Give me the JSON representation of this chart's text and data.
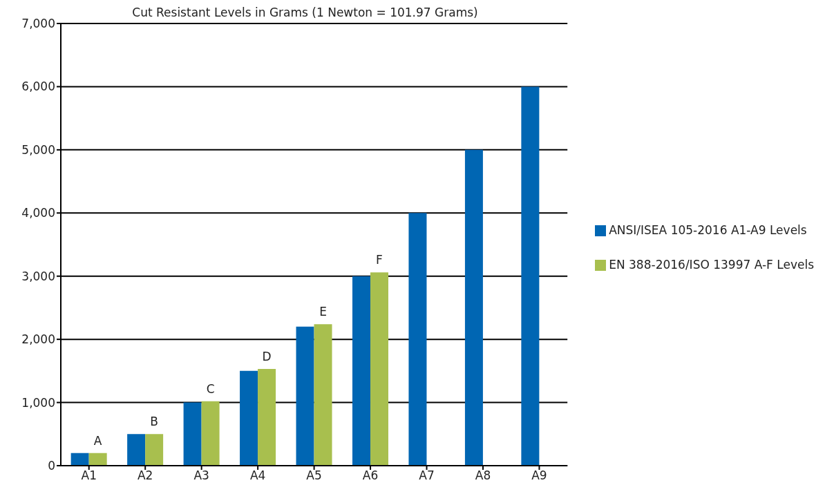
{
  "chart_data": {
    "type": "bar",
    "title": "Cut Resistant Levels in Grams (1 Newton = 101.97 Grams)",
    "categories": [
      "A1",
      "A2",
      "A3",
      "A4",
      "A5",
      "A6",
      "A7",
      "A8",
      "A9"
    ],
    "series": [
      {
        "name": "ANSI/ISEA 105-2016 A1-A9 Levels",
        "color": "#0066b3",
        "values": [
          200,
          500,
          1000,
          1500,
          2200,
          3000,
          4000,
          5000,
          6000
        ]
      },
      {
        "name": "EN 388-2016/ISO 13997 A-F Levels",
        "color": "#a8bf4e",
        "values": [
          200,
          500,
          1020,
          1530,
          2240,
          3060,
          null,
          null,
          null
        ],
        "value_labels": [
          "A",
          "B",
          "C",
          "D",
          "E",
          "F",
          null,
          null,
          null
        ]
      }
    ],
    "ylim": [
      0,
      7000
    ],
    "yticks": [
      {
        "value": 0,
        "label": "0"
      },
      {
        "value": 1000,
        "label": "1,000"
      },
      {
        "value": 2000,
        "label": "2,000"
      },
      {
        "value": 3000,
        "label": "3,000"
      },
      {
        "value": 4000,
        "label": "4,000"
      },
      {
        "value": 5000,
        "label": "5,000"
      },
      {
        "value": 6000,
        "label": "6,000"
      },
      {
        "value": 7000,
        "label": "7,000"
      }
    ],
    "grid": "y",
    "legend": "right"
  }
}
